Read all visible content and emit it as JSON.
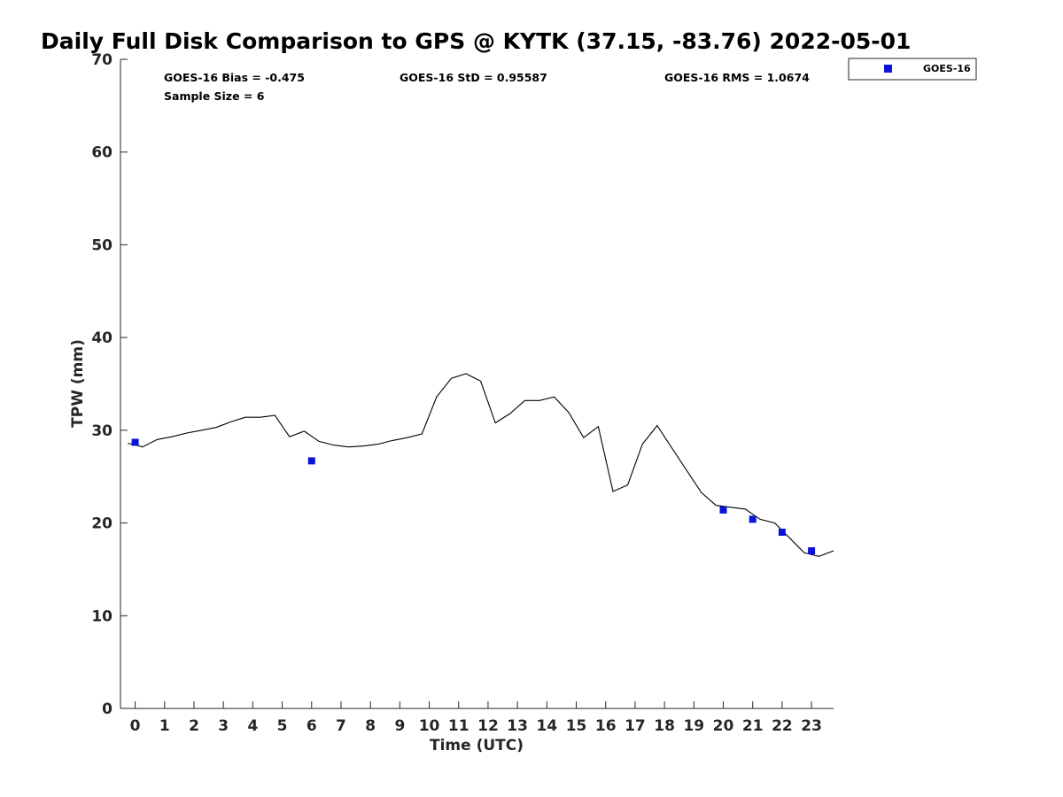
{
  "chart_data": {
    "type": "line",
    "title": "Daily Full Disk Comparison to GPS @ KYTK (37.15, -83.76) 2022-05-01",
    "xlabel": "Time (UTC)",
    "ylabel": "TPW (mm)",
    "xlim": [
      -0.5,
      23.75
    ],
    "ylim": [
      0,
      70
    ],
    "x_ticks": [
      "0",
      "1",
      "2",
      "3",
      "4",
      "5",
      "6",
      "7",
      "8",
      "9",
      "10",
      "11",
      "12",
      "13",
      "14",
      "15",
      "16",
      "17",
      "18",
      "19",
      "20",
      "21",
      "22",
      "23"
    ],
    "y_ticks": [
      "0",
      "10",
      "20",
      "30",
      "40",
      "50",
      "60",
      "70"
    ],
    "grid": false,
    "legend_position": "top-right, outside plot",
    "stats": {
      "bias": "GOES-16 Bias = -0.475",
      "std": "GOES-16 StD = 0.95587",
      "rms": "GOES-16 RMS = 1.0674",
      "sample_size": "Sample Size = 6"
    },
    "series": [
      {
        "type": "line",
        "color": "#000000",
        "points": [
          [
            -0.25,
            28.6
          ],
          [
            0.25,
            28.2
          ],
          [
            0.75,
            29.0
          ],
          [
            1.25,
            29.3
          ],
          [
            1.75,
            29.7
          ],
          [
            2.25,
            30.0
          ],
          [
            2.75,
            30.3
          ],
          [
            3.25,
            30.9
          ],
          [
            3.75,
            31.4
          ],
          [
            4.25,
            31.4
          ],
          [
            4.75,
            31.6
          ],
          [
            5.25,
            29.3
          ],
          [
            5.75,
            29.9
          ],
          [
            6.25,
            28.8
          ],
          [
            6.75,
            28.4
          ],
          [
            7.25,
            28.2
          ],
          [
            7.75,
            28.3
          ],
          [
            8.25,
            28.5
          ],
          [
            8.75,
            28.9
          ],
          [
            9.25,
            29.2
          ],
          [
            9.75,
            29.6
          ],
          [
            10.25,
            33.6
          ],
          [
            10.75,
            35.6
          ],
          [
            11.25,
            36.1
          ],
          [
            11.75,
            35.3
          ],
          [
            12.25,
            30.8
          ],
          [
            12.75,
            31.8
          ],
          [
            13.25,
            33.2
          ],
          [
            13.75,
            33.2
          ],
          [
            14.25,
            33.6
          ],
          [
            14.75,
            31.9
          ],
          [
            15.25,
            29.2
          ],
          [
            15.75,
            30.4
          ],
          [
            16.25,
            23.4
          ],
          [
            16.75,
            24.1
          ],
          [
            17.25,
            28.5
          ],
          [
            17.75,
            30.5
          ],
          [
            18.25,
            28.1
          ],
          [
            18.75,
            25.7
          ],
          [
            19.25,
            23.3
          ],
          [
            19.75,
            21.9
          ],
          [
            20.25,
            21.7
          ],
          [
            20.75,
            21.5
          ],
          [
            21.25,
            20.4
          ],
          [
            21.75,
            20.0
          ],
          [
            22.25,
            18.4
          ],
          [
            22.75,
            16.8
          ],
          [
            23.25,
            16.4
          ],
          [
            23.75,
            17.0
          ]
        ]
      },
      {
        "name": "GOES-16",
        "type": "scatter",
        "marker": "square",
        "color": "#0a14d8",
        "x": [
          0,
          6,
          20,
          21,
          22,
          23
        ],
        "y": [
          28.7,
          26.7,
          21.4,
          20.4,
          19.0,
          17.0
        ]
      }
    ]
  }
}
